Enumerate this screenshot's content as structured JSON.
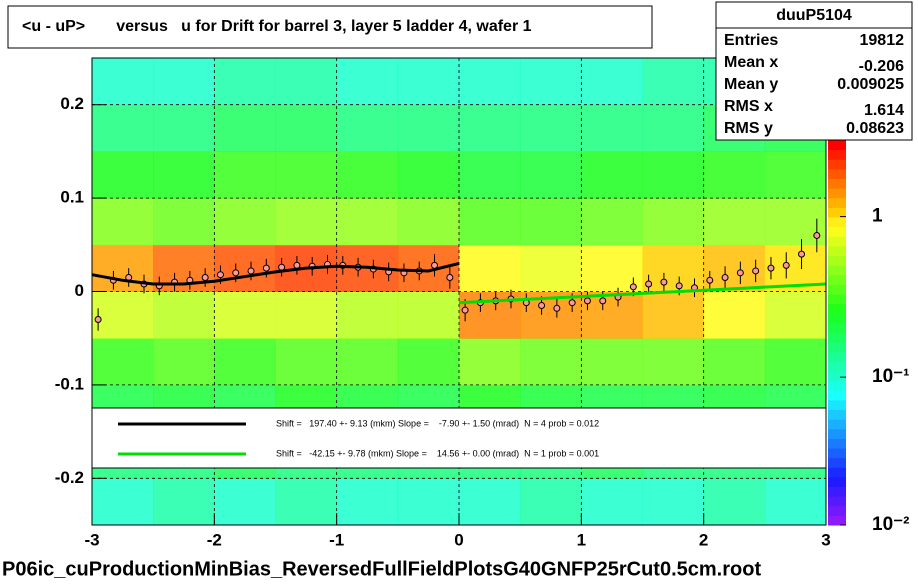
{
  "chart_data": {
    "type": "profile2d",
    "title": "<u - uP>       versus   u for Drift for barrel 3, layer 5 ladder 4, wafer 1",
    "footer": "P06ic_cuProductionMinBias_ReversedFullFieldPlotsG40GNFP25rCut0.5cm.root",
    "xlim": [
      -3,
      3
    ],
    "xticks": [
      -3,
      -2,
      -1,
      0,
      1,
      2,
      3
    ],
    "ylim": [
      -0.25,
      0.25
    ],
    "yticks": [
      -0.2,
      -0.1,
      0,
      0.1,
      0.2
    ],
    "grid": true,
    "heatmap": {
      "xbins": [
        -3,
        -2.5,
        -2,
        -1.5,
        -1,
        -0.5,
        0,
        0.5,
        1,
        1.5,
        2,
        2.5,
        3
      ],
      "ybins": [
        -0.25,
        -0.2,
        -0.15,
        -0.1,
        -0.05,
        0,
        0.05,
        0.1,
        0.15,
        0.2,
        0.25
      ],
      "zlim": [
        0.012,
        3
      ],
      "log": true,
      "z": [
        [
          0.1,
          0.12,
          0.1,
          0.12,
          0.1,
          0.1,
          0.1,
          0.12,
          0.1,
          0.1,
          0.12,
          0.1
        ],
        [
          0.15,
          0.15,
          0.18,
          0.15,
          0.15,
          0.15,
          0.15,
          0.15,
          0.18,
          0.15,
          0.15,
          0.15
        ],
        [
          0.2,
          0.22,
          0.2,
          0.25,
          0.22,
          0.2,
          0.25,
          0.22,
          0.2,
          0.2,
          0.22,
          0.2
        ],
        [
          0.3,
          0.35,
          0.3,
          0.35,
          0.35,
          0.3,
          0.45,
          0.4,
          0.4,
          0.4,
          0.35,
          0.3
        ],
        [
          0.7,
          0.6,
          0.7,
          0.7,
          0.6,
          0.6,
          1.6,
          1.5,
          1.4,
          1.2,
          0.9,
          0.7
        ],
        [
          1.4,
          1.8,
          2,
          2.2,
          2.1,
          1.9,
          0.9,
          0.8,
          0.9,
          1.1,
          1.2,
          1
        ],
        [
          0.45,
          0.4,
          0.45,
          0.5,
          0.5,
          0.45,
          0.35,
          0.35,
          0.4,
          0.45,
          0.5,
          0.5
        ],
        [
          0.25,
          0.25,
          0.3,
          0.3,
          0.28,
          0.25,
          0.22,
          0.22,
          0.25,
          0.25,
          0.28,
          0.3
        ],
        [
          0.15,
          0.15,
          0.18,
          0.18,
          0.15,
          0.15,
          0.15,
          0.15,
          0.15,
          0.15,
          0.18,
          0.2
        ],
        [
          0.1,
          0.1,
          0.12,
          0.12,
          0.1,
          0.1,
          0.1,
          0.1,
          0.1,
          0.12,
          0.12,
          0.15
        ]
      ]
    },
    "colorbar_ticks": [
      {
        "value": 1,
        "label": "1"
      },
      {
        "value": 0.1,
        "label": "10⁻¹"
      },
      {
        "value": 0.01,
        "label": "10⁻²"
      }
    ],
    "profile": {
      "color": "#000000",
      "x": [
        -2.95,
        -2.825,
        -2.7,
        -2.575,
        -2.45,
        -2.325,
        -2.2,
        -2.075,
        -1.95,
        -1.825,
        -1.7,
        -1.575,
        -1.45,
        -1.325,
        -1.2,
        -1.075,
        -0.95,
        -0.825,
        -0.7,
        -0.575,
        -0.45,
        -0.325,
        -0.2,
        -0.075,
        0.05,
        0.175,
        0.3,
        0.425,
        0.55,
        0.675,
        0.8,
        0.925,
        1.05,
        1.175,
        1.3,
        1.425,
        1.55,
        1.675,
        1.8,
        1.925,
        2.05,
        2.175,
        2.3,
        2.425,
        2.55,
        2.675,
        2.8,
        2.925
      ],
      "values": [
        -0.03,
        0.012,
        0.015,
        0.008,
        0.006,
        0.01,
        0.012,
        0.015,
        0.018,
        0.02,
        0.022,
        0.025,
        0.026,
        0.028,
        0.027,
        0.029,
        0.028,
        0.026,
        0.024,
        0.021,
        0.02,
        0.022,
        0.028,
        0.015,
        -0.02,
        -0.012,
        -0.01,
        -0.008,
        -0.012,
        -0.015,
        -0.018,
        -0.012,
        -0.01,
        -0.01,
        -0.006,
        0.005,
        0.008,
        0.01,
        0.006,
        0.004,
        0.012,
        0.015,
        0.02,
        0.022,
        0.025,
        0.028,
        0.04,
        0.06
      ],
      "errors": [
        0.012,
        0.01,
        0.01,
        0.01,
        0.01,
        0.01,
        0.01,
        0.01,
        0.01,
        0.01,
        0.01,
        0.01,
        0.01,
        0.01,
        0.01,
        0.01,
        0.01,
        0.01,
        0.01,
        0.01,
        0.01,
        0.01,
        0.012,
        0.012,
        0.012,
        0.01,
        0.01,
        0.01,
        0.01,
        0.01,
        0.01,
        0.01,
        0.01,
        0.01,
        0.01,
        0.01,
        0.01,
        0.01,
        0.01,
        0.01,
        0.01,
        0.012,
        0.012,
        0.012,
        0.012,
        0.014,
        0.016,
        0.018
      ]
    },
    "fits": [
      {
        "color": "#000000",
        "x": [
          -3,
          -2.75,
          -2.5,
          -2.25,
          -2,
          -1.75,
          -1.5,
          -1.25,
          -1,
          -0.75,
          -0.5,
          -0.25,
          0
        ],
        "values": [
          0.018,
          0.012,
          0.008,
          0.008,
          0.011,
          0.016,
          0.021,
          0.025,
          0.027,
          0.026,
          0.023,
          0.022,
          0.03
        ],
        "label": "Shift =   197.40 +- 9.13 (mkm) Slope =    -7.90 +- 1.50 (mrad)  N = 4 prob = 0.012"
      },
      {
        "color": "#00dd00",
        "x": [
          0,
          3
        ],
        "values": [
          -0.012,
          0.008
        ],
        "label": "Shift =   -42.15 +- 9.78 (mkm) Slope =    14.56 +- 0.00 (mrad)  N = 1 prob = 0.001"
      }
    ],
    "stats": {
      "name": "duuP5104",
      "rows": [
        {
          "label": "Entries",
          "value": 19812
        },
        {
          "label": "Mean x",
          "value": -0.206
        },
        {
          "label": "Mean y",
          "value": 0.009025
        },
        {
          "label": "RMS x",
          "value": 1.614
        },
        {
          "label": "RMS y",
          "value": 0.08623
        }
      ]
    }
  }
}
